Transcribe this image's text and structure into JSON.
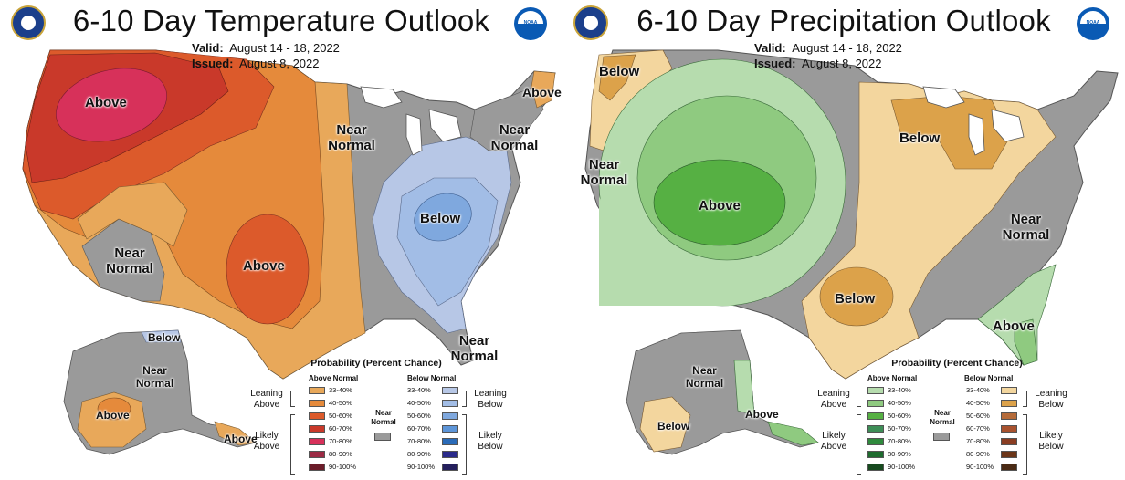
{
  "maps": [
    {
      "title": "6-10 Day Temperature Outlook",
      "valid_label": "Valid:",
      "valid_value": "August 14 - 18, 2022",
      "issued_label": "Issued:",
      "issued_value": "August 8, 2022",
      "region_labels": [
        "Above",
        "Near Normal",
        "Above",
        "Below",
        "Above",
        "Near Normal",
        "Near Normal",
        "Near Normal",
        "Below",
        "Near Normal",
        "Above",
        "Above"
      ],
      "legend": {
        "title": "Probability (Percent Chance)",
        "left_header": "Above Normal",
        "right_header": "Below Normal",
        "near_normal": "Near Normal",
        "left_groups": [
          "Leaning Above",
          "Likely Above"
        ],
        "right_groups": [
          "Leaning Below",
          "Likely Below"
        ],
        "left_colors": [
          "#e8a85a",
          "#e58a3b",
          "#dc5a2b",
          "#c9392a",
          "#d7315a",
          "#9b2a44",
          "#6b1c29"
        ],
        "right_colors": [
          "#b7c7e6",
          "#a2bde6",
          "#7fa8de",
          "#5d95d8",
          "#2a6bb8",
          "#2a2a8a",
          "#241f5c"
        ],
        "ranges": [
          "33-40%",
          "40-50%",
          "50-60%",
          "60-70%",
          "70-80%",
          "80-90%",
          "90-100%"
        ]
      }
    },
    {
      "title": "6-10 Day Precipitation Outlook",
      "valid_label": "Valid:",
      "valid_value": "August 14 - 18, 2022",
      "issued_label": "Issued:",
      "issued_value": "August 8, 2022",
      "region_labels": [
        "Below",
        "Near Normal",
        "Above",
        "Below",
        "Near Normal",
        "Below",
        "Above",
        "Near Normal",
        "Below",
        "Above"
      ],
      "legend": {
        "title": "Probability (Percent Chance)",
        "left_header": "Above Normal",
        "right_header": "Below Normal",
        "near_normal": "Near Normal",
        "left_groups": [
          "Leaning Above",
          "Likely Above"
        ],
        "right_groups": [
          "Leaning Below",
          "Likely Below"
        ],
        "left_colors": [
          "#b6dcae",
          "#8fca80",
          "#56b043",
          "#3e8e57",
          "#2f8a3d",
          "#1e6b2e",
          "#174a1f"
        ],
        "right_colors": [
          "#f3d69e",
          "#dca24a",
          "#b56b3a",
          "#a8522e",
          "#8a3d22",
          "#6b3518",
          "#4a2a14"
        ],
        "ranges": [
          "33-40%",
          "40-50%",
          "50-60%",
          "60-70%",
          "70-80%",
          "80-90%",
          "90-100%"
        ]
      }
    }
  ]
}
